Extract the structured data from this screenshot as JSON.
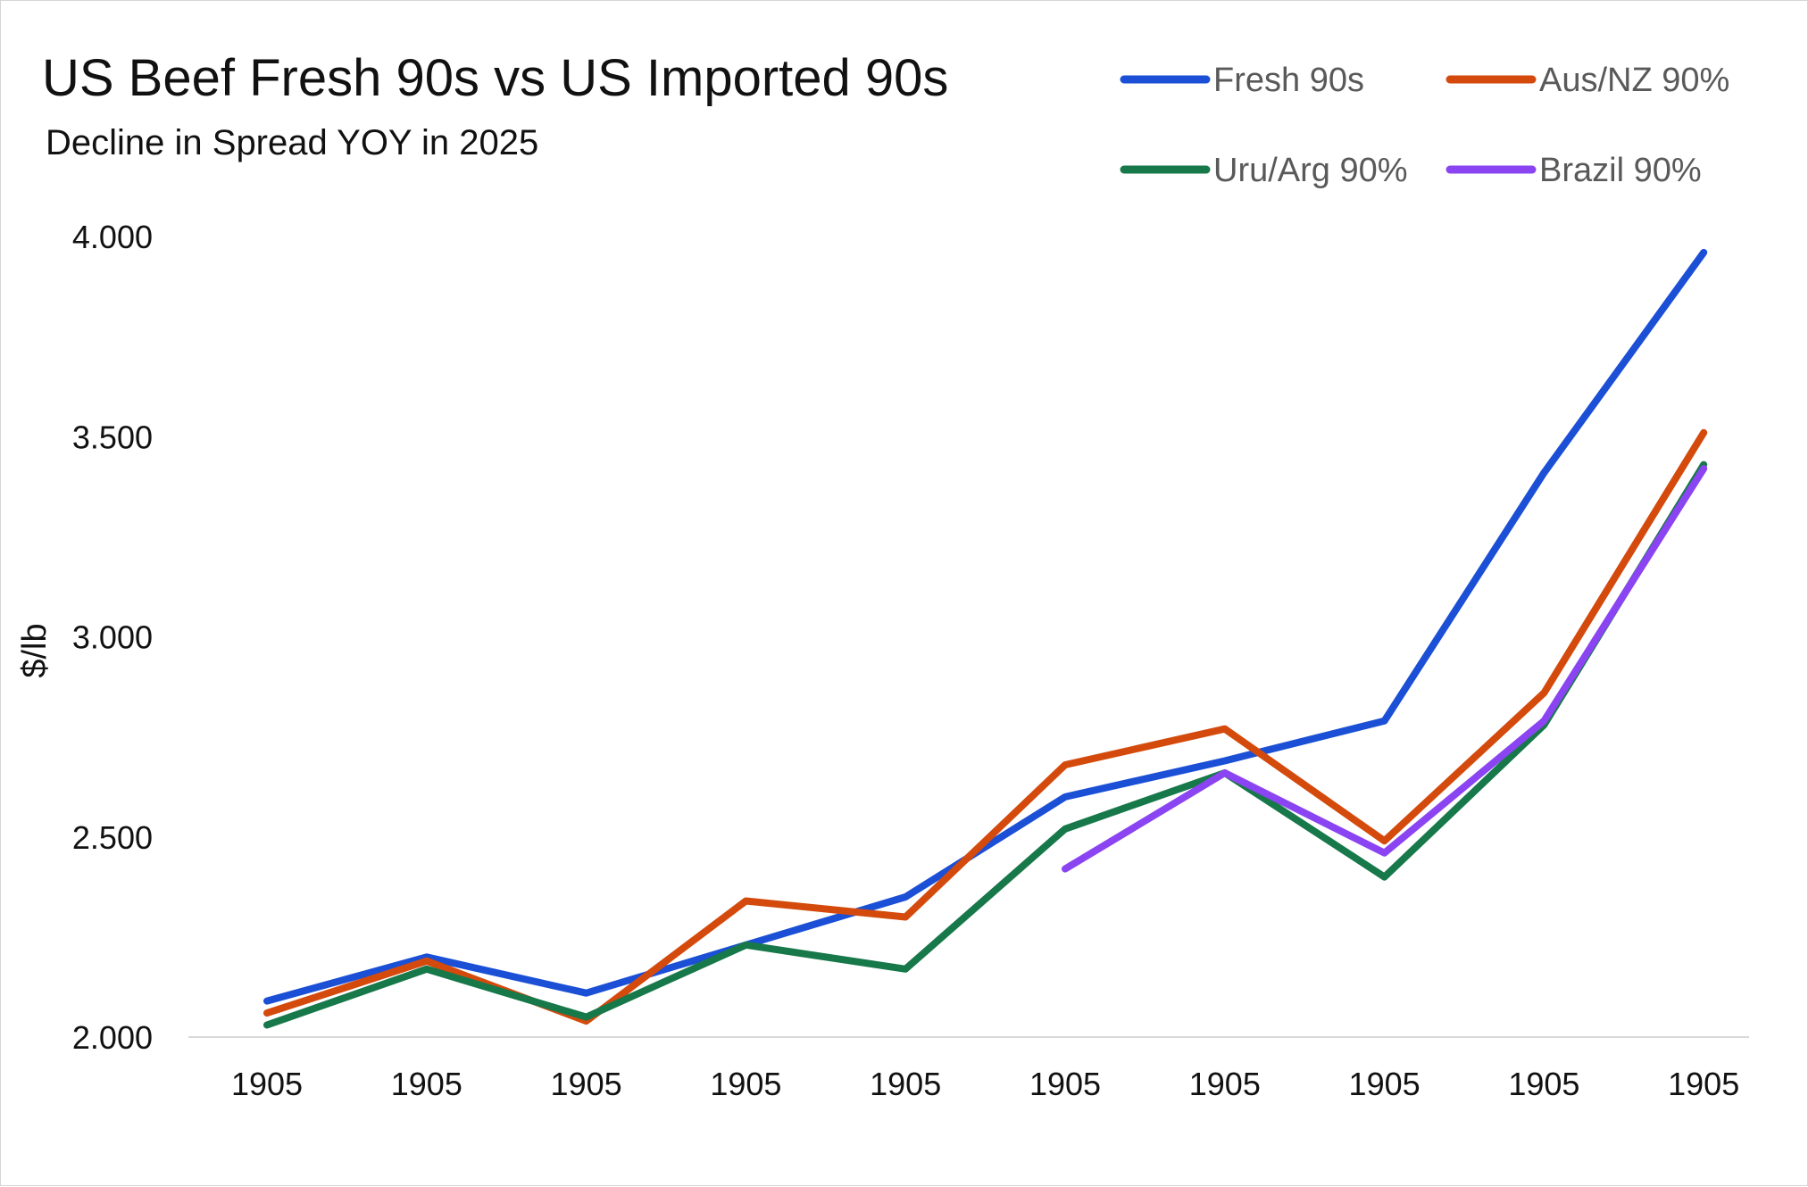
{
  "chart_data": {
    "type": "line",
    "title": "US Beef Fresh 90s vs US Imported 90s",
    "subtitle": "Decline in Spread YOY in 2025",
    "xlabel": "",
    "ylabel": "$/lb",
    "ylim": [
      2.0,
      4.0
    ],
    "yticks": [
      "4.000",
      "3.500",
      "3.000",
      "2.500",
      "2.000"
    ],
    "ytick_values": [
      4.0,
      3.5,
      3.0,
      2.5,
      2.0
    ],
    "categories": [
      "1905",
      "1905",
      "1905",
      "1905",
      "1905",
      "1905",
      "1905",
      "1905",
      "1905",
      "1905"
    ],
    "legend_position": "top-right",
    "grid": false,
    "series": [
      {
        "name": "Fresh 90s",
        "color": "#1a4fd6",
        "values": [
          2.09,
          2.2,
          2.11,
          2.23,
          2.35,
          2.6,
          2.69,
          2.79,
          3.41,
          3.96
        ]
      },
      {
        "name": "Aus/NZ 90%",
        "color": "#d44a0c",
        "values": [
          2.06,
          2.19,
          2.04,
          2.34,
          2.3,
          2.68,
          2.77,
          2.49,
          2.86,
          3.51
        ]
      },
      {
        "name": "Uru/Arg 90%",
        "color": "#17784a",
        "values": [
          2.03,
          2.17,
          2.05,
          2.23,
          2.17,
          2.52,
          2.66,
          2.4,
          2.78,
          3.43
        ]
      },
      {
        "name": "Brazil 90%",
        "color": "#8b44f2",
        "values": [
          null,
          null,
          null,
          null,
          null,
          2.42,
          2.66,
          2.46,
          2.79,
          3.42
        ]
      }
    ]
  }
}
